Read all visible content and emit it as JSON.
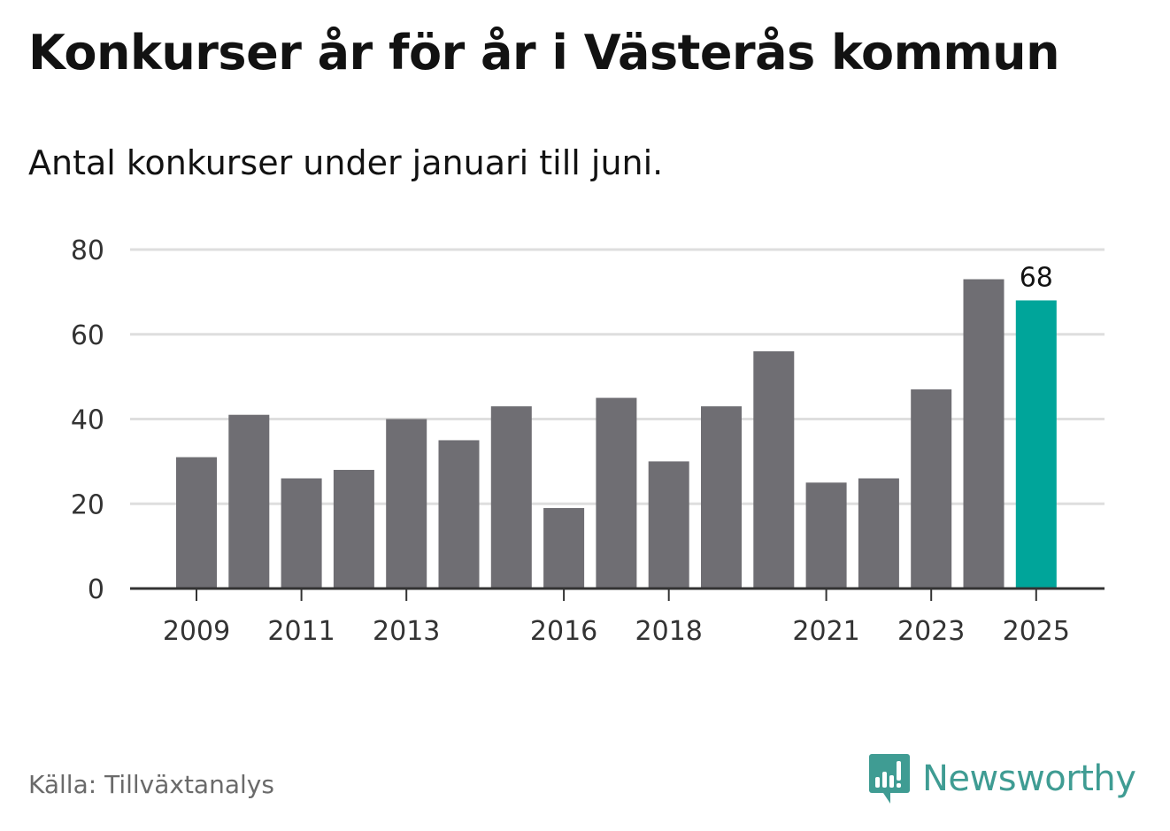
{
  "title": "Konkurser år för år i Västerås kommun",
  "subtitle": "Antal konkurser under januari till juni.",
  "source": "Källa: Tillväxtanalys",
  "brand": {
    "name": "Newsworthy",
    "icon": "newsworthy-logo-icon",
    "color": "#3f9c93"
  },
  "colors": {
    "bar": "#6f6e73",
    "highlight": "#00a59a",
    "grid": "#dedede",
    "axis": "#333333"
  },
  "chart_data": {
    "type": "bar",
    "categories": [
      "2009",
      "2010",
      "2011",
      "2012",
      "2013",
      "2014",
      "2015",
      "2016",
      "2017",
      "2018",
      "2019",
      "2020",
      "2021",
      "2022",
      "2023",
      "2024",
      "2025"
    ],
    "values": [
      31,
      41,
      26,
      28,
      40,
      35,
      43,
      19,
      45,
      30,
      43,
      56,
      25,
      26,
      47,
      73,
      68
    ],
    "x_tick_labels": [
      "2009",
      "2011",
      "2013",
      "2016",
      "2018",
      "2021",
      "2023",
      "2025"
    ],
    "y_ticks": [
      0,
      20,
      40,
      60,
      80
    ],
    "ylim": [
      0,
      80
    ],
    "highlight_category": "2025",
    "data_labels": [
      {
        "category": "2025",
        "text": "68"
      }
    ],
    "grid": true,
    "legend": false
  }
}
